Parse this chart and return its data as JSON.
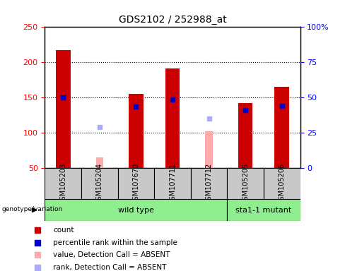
{
  "title": "GDS2102 / 252988_at",
  "samples": [
    "GSM105203",
    "GSM105204",
    "GSM107670",
    "GSM107711",
    "GSM107712",
    "GSM105205",
    "GSM105206"
  ],
  "count_values": [
    217,
    null,
    155,
    191,
    null,
    142,
    165
  ],
  "count_absent_values": [
    null,
    65,
    null,
    null,
    102,
    null,
    null
  ],
  "rank_values": [
    150,
    null,
    137,
    147,
    null,
    132,
    138
  ],
  "rank_absent_values": [
    null,
    108,
    null,
    null,
    120,
    null,
    null
  ],
  "ylim_left": [
    50,
    250
  ],
  "yticks_left": [
    50,
    100,
    150,
    200,
    250
  ],
  "ytick_labels_right": [
    "0",
    "25",
    "50",
    "75",
    "100%"
  ],
  "bar_width": 0.4,
  "bar_color_red": "#cc0000",
  "bar_color_pink": "#ffaaaa",
  "marker_color_blue": "#0000cc",
  "marker_color_lightblue": "#aaaaff",
  "plot_bg_color": "#ffffff",
  "label_area_color": "#c8c8c8",
  "genotype_color_wt": "#90ee90",
  "genotype_color_mut": "#90ee90",
  "wt_label": "wild type",
  "mut_label": "sta1-1 mutant",
  "geno_label": "genotype/variation"
}
